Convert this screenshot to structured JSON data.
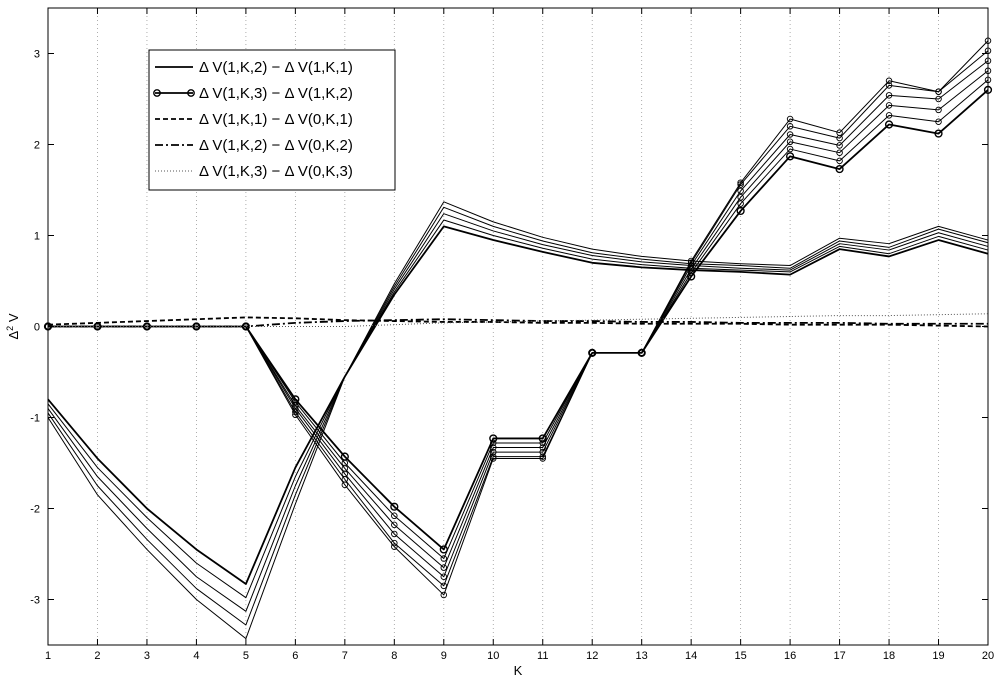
{
  "chart_data": {
    "type": "line",
    "title": "",
    "xlabel": "K",
    "ylabel": "Δ² V",
    "ylabel_base": "Δ",
    "ylabel_sup": "2",
    "ylabel_tail": " V",
    "xlim": [
      1,
      20
    ],
    "ylim": [
      -3.5,
      3.5
    ],
    "xticks": [
      1,
      2,
      3,
      4,
      5,
      6,
      7,
      8,
      9,
      10,
      11,
      12,
      13,
      14,
      15,
      16,
      17,
      18,
      19,
      20
    ],
    "yticks": [
      -3,
      -2,
      -1,
      0,
      1,
      2,
      3
    ],
    "grid": "vertical dotted",
    "legend_position": "top-left",
    "x": [
      1,
      2,
      3,
      4,
      5,
      6,
      7,
      8,
      9,
      10,
      11,
      12,
      13,
      14,
      15,
      16,
      17,
      18,
      19,
      20
    ],
    "series": [
      {
        "name": "Δ V(1,K,2) − Δ V(1,K,1)",
        "style": "solid",
        "bold": true,
        "marker": "none",
        "values": [
          -0.8,
          -1.45,
          -2.0,
          -2.45,
          -2.83,
          -1.55,
          -0.55,
          0.35,
          1.1,
          0.95,
          0.82,
          0.7,
          0.65,
          0.62,
          0.6,
          0.57,
          0.85,
          0.77,
          0.95,
          0.8
        ]
      },
      {
        "name": "",
        "style": "solid",
        "bold": false,
        "marker": "none",
        "values": [
          -0.85,
          -1.55,
          -2.1,
          -2.6,
          -2.98,
          -1.65,
          -0.55,
          0.38,
          1.17,
          1.0,
          0.86,
          0.74,
          0.68,
          0.64,
          0.62,
          0.6,
          0.88,
          0.8,
          0.99,
          0.84
        ]
      },
      {
        "name": "",
        "style": "solid",
        "bold": false,
        "marker": "none",
        "values": [
          -0.9,
          -1.65,
          -2.22,
          -2.75,
          -3.13,
          -1.75,
          -0.55,
          0.41,
          1.24,
          1.05,
          0.9,
          0.78,
          0.71,
          0.67,
          0.64,
          0.62,
          0.91,
          0.84,
          1.03,
          0.88
        ]
      },
      {
        "name": "",
        "style": "solid",
        "bold": false,
        "marker": "none",
        "values": [
          -0.95,
          -1.75,
          -2.34,
          -2.88,
          -3.28,
          -1.85,
          -0.55,
          0.44,
          1.31,
          1.1,
          0.94,
          0.81,
          0.74,
          0.69,
          0.67,
          0.64,
          0.94,
          0.87,
          1.07,
          0.92
        ]
      },
      {
        "name": "",
        "style": "solid",
        "bold": false,
        "marker": "none",
        "values": [
          -1.0,
          -1.85,
          -2.45,
          -3.0,
          -3.43,
          -1.95,
          -0.55,
          0.47,
          1.37,
          1.15,
          0.98,
          0.85,
          0.77,
          0.72,
          0.69,
          0.67,
          0.97,
          0.91,
          1.1,
          0.95
        ]
      },
      {
        "name": "Δ V(1,K,3) − Δ V(1,K,2)",
        "style": "solid",
        "bold": true,
        "marker": "circle",
        "values": [
          0,
          0,
          0,
          0,
          0,
          -0.8,
          -1.43,
          -1.98,
          -2.45,
          -1.23,
          -1.23,
          -0.29,
          -0.29,
          0.55,
          1.27,
          1.87,
          1.73,
          2.22,
          2.12,
          2.6
        ]
      },
      {
        "name": "",
        "style": "solid",
        "bold": false,
        "marker": "circle",
        "values": [
          0,
          0,
          0,
          0,
          0,
          -0.83,
          -1.5,
          -2.08,
          -2.55,
          -1.28,
          -1.28,
          -0.29,
          -0.29,
          0.59,
          1.35,
          1.95,
          1.82,
          2.32,
          2.25,
          2.71
        ]
      },
      {
        "name": "",
        "style": "solid",
        "bold": false,
        "marker": "circle",
        "values": [
          0,
          0,
          0,
          0,
          0,
          -0.87,
          -1.56,
          -2.18,
          -2.65,
          -1.33,
          -1.33,
          -0.29,
          -0.29,
          0.63,
          1.42,
          2.03,
          1.91,
          2.43,
          2.38,
          2.81
        ]
      },
      {
        "name": "",
        "style": "solid",
        "bold": false,
        "marker": "circle",
        "values": [
          0,
          0,
          0,
          0,
          0,
          -0.9,
          -1.62,
          -2.28,
          -2.75,
          -1.38,
          -1.38,
          -0.29,
          -0.29,
          0.67,
          1.49,
          2.11,
          1.99,
          2.54,
          2.5,
          2.92
        ]
      },
      {
        "name": "",
        "style": "solid",
        "bold": false,
        "marker": "circle",
        "values": [
          0,
          0,
          0,
          0,
          0,
          -0.94,
          -1.68,
          -2.38,
          -2.85,
          -1.43,
          -1.43,
          -0.29,
          -0.29,
          0.7,
          1.56,
          2.2,
          2.07,
          2.65,
          2.58,
          3.03
        ]
      },
      {
        "name": "",
        "style": "solid",
        "bold": false,
        "marker": "circle",
        "values": [
          0,
          0,
          0,
          0,
          0,
          -0.97,
          -1.74,
          -2.42,
          -2.95,
          -1.45,
          -1.45,
          -0.29,
          -0.29,
          0.72,
          1.58,
          2.28,
          2.13,
          2.7,
          2.58,
          3.14
        ]
      },
      {
        "name": "Δ V(1,K,1) − Δ V(0,K,1)",
        "style": "dashed",
        "bold": true,
        "marker": "none",
        "values": [
          0.02,
          0.04,
          0.06,
          0.08,
          0.1,
          0.09,
          0.07,
          0.06,
          0.05,
          0.05,
          0.04,
          0.04,
          0.03,
          0.03,
          0.03,
          0.02,
          0.02,
          0.02,
          0.01,
          0.0
        ]
      },
      {
        "name": "Δ V(1,K,2) − Δ V(0,K,2)",
        "style": "dashdot",
        "bold": true,
        "marker": "none",
        "values": [
          0.0,
          0.0,
          0.0,
          0.0,
          0.0,
          0.04,
          0.06,
          0.07,
          0.08,
          0.07,
          0.06,
          0.06,
          0.05,
          0.05,
          0.04,
          0.04,
          0.04,
          0.03,
          0.03,
          0.03
        ]
      },
      {
        "name": "Δ V(1,K,3) − Δ V(0,K,3)",
        "style": "dotted",
        "bold": false,
        "marker": "none",
        "values": [
          0.0,
          0.0,
          0.0,
          0.0,
          0.0,
          0.0,
          0.0,
          0.02,
          0.04,
          0.05,
          0.06,
          0.07,
          0.08,
          0.09,
          0.1,
          0.11,
          0.12,
          0.12,
          0.13,
          0.14
        ]
      }
    ]
  }
}
